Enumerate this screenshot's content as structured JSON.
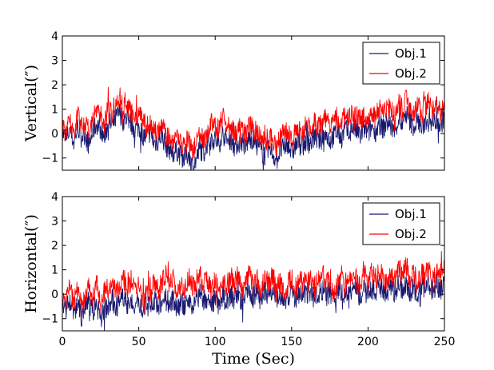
{
  "chart_data": [
    {
      "type": "line",
      "ylabel": "Vertical(″)",
      "xlabel": "",
      "xlim": [
        0,
        250
      ],
      "ylim": [
        -1.5,
        4
      ],
      "xticks": [],
      "xtick_labels": [],
      "yticks": [
        -1,
        0,
        1,
        2,
        3,
        4
      ],
      "ytick_labels": [
        "−1",
        "0",
        "1",
        "2",
        "3",
        "4"
      ],
      "legend_position": "top-right",
      "series": [
        {
          "name": "Obj.1",
          "color": "#191970",
          "x_start": 0,
          "x_step": 2.5,
          "values": [
            0.1,
            -0.3,
            0.2,
            -0.4,
            0.3,
            -0.1,
            0.0,
            -0.5,
            0.1,
            0.4,
            0.2,
            -0.2,
            0.5,
            0.3,
            0.6,
            0.9,
            0.5,
            0.7,
            0.4,
            0.2,
            0.3,
            0.0,
            -0.2,
            0.1,
            -0.4,
            -0.3,
            0.0,
            -0.5,
            -0.6,
            -0.8,
            -0.7,
            -0.9,
            -1.0,
            -0.8,
            -1.3,
            -1.1,
            -0.6,
            -0.8,
            -0.4,
            -0.2,
            -0.3,
            -0.4,
            0.0,
            -0.3,
            -0.2,
            -0.5,
            -0.4,
            -0.3,
            -0.6,
            -0.1,
            -0.3,
            -0.5,
            -0.7,
            -0.9,
            -0.6,
            -0.8,
            -1.1,
            -0.7,
            -0.6,
            -0.4,
            -0.8,
            -0.5,
            -0.3,
            -0.5,
            -0.2,
            -0.4,
            -0.1,
            -0.3,
            -0.2,
            0.0,
            -0.3,
            -0.1,
            0.1,
            -0.2,
            0.2,
            0.0,
            0.3,
            0.1,
            -0.1,
            0.2,
            0.0,
            0.3,
            0.1,
            0.4,
            0.2,
            0.5,
            0.3,
            0.1,
            0.6,
            0.4,
            0.8,
            0.5,
            0.3,
            0.6,
            0.2,
            0.5,
            0.7,
            0.4,
            0.6,
            0.3,
            0.8
          ]
        },
        {
          "name": "Obj.2",
          "color": "#ff0000",
          "x_start": 0,
          "x_step": 2.5,
          "values": [
            0.4,
            0.0,
            0.6,
            0.1,
            0.7,
            0.3,
            0.5,
            0.0,
            0.6,
            0.9,
            0.7,
            0.4,
            1.0,
            0.8,
            1.1,
            1.5,
            1.0,
            1.2,
            0.9,
            0.7,
            0.8,
            0.5,
            0.3,
            0.5,
            0.1,
            0.2,
            0.4,
            0.0,
            -0.1,
            -0.3,
            -0.2,
            -0.4,
            -0.5,
            -0.2,
            -0.7,
            -0.5,
            0.0,
            -0.3,
            0.1,
            0.4,
            0.3,
            0.2,
            0.7,
            0.4,
            0.4,
            0.0,
            0.1,
            0.3,
            -0.1,
            0.4,
            0.2,
            0.0,
            -0.2,
            -0.4,
            -0.1,
            -0.2,
            -0.5,
            -0.2,
            0.0,
            0.2,
            -0.3,
            0.0,
            0.3,
            0.1,
            0.4,
            0.2,
            0.5,
            0.3,
            0.4,
            0.6,
            0.3,
            0.5,
            0.7,
            0.4,
            0.8,
            0.6,
            0.9,
            0.7,
            0.5,
            0.8,
            0.6,
            0.9,
            0.7,
            1.0,
            0.8,
            1.1,
            0.9,
            0.7,
            1.2,
            1.0,
            1.4,
            1.1,
            0.9,
            1.2,
            0.8,
            1.1,
            1.3,
            1.0,
            1.2,
            0.9,
            1.3
          ]
        }
      ]
    },
    {
      "type": "line",
      "ylabel": "Horizontal(″)",
      "xlabel": "Time (Sec)",
      "xlim": [
        0,
        250
      ],
      "ylim": [
        -1.5,
        4
      ],
      "xticks": [
        0,
        50,
        100,
        150,
        200,
        250
      ],
      "xtick_labels": [
        "0",
        "50",
        "100",
        "150",
        "200",
        "250"
      ],
      "yticks": [
        -1,
        0,
        1,
        2,
        3,
        4
      ],
      "ytick_labels": [
        "−1",
        "0",
        "1",
        "2",
        "3",
        "4"
      ],
      "legend_position": "top-right",
      "series": [
        {
          "name": "Obj.1",
          "color": "#191970",
          "x_start": 0,
          "x_step": 2.5,
          "values": [
            -0.3,
            -0.6,
            -0.2,
            -0.8,
            -0.4,
            -0.9,
            -0.5,
            -0.3,
            -0.7,
            -0.4,
            -1.0,
            -0.6,
            -0.5,
            -0.2,
            -0.6,
            -0.3,
            -0.1,
            -0.4,
            -0.2,
            -0.5,
            -0.3,
            -0.7,
            -0.4,
            -0.6,
            -0.2,
            -0.5,
            -0.3,
            -0.1,
            -0.4,
            -0.2,
            -0.6,
            -0.3,
            -0.5,
            -0.1,
            -0.4,
            -0.2,
            0.0,
            -0.3,
            -0.1,
            -0.4,
            -0.2,
            -0.5,
            -0.1,
            -0.3,
            0.0,
            -0.2,
            0.1,
            -0.3,
            -0.1,
            0.2,
            -0.2,
            0.0,
            -0.3,
            0.1,
            -0.1,
            0.2,
            -0.2,
            0.0,
            -0.4,
            -0.1,
            0.1,
            -0.3,
            0.0,
            0.2,
            -0.1,
            0.1,
            -0.2,
            0.0,
            0.2,
            -0.1,
            0.1,
            -0.3,
            0.0,
            0.2,
            -0.1,
            0.0,
            0.3,
            0.1,
            -0.1,
            0.2,
            0.0,
            0.3,
            0.1,
            0.4,
            0.2,
            0.0,
            0.3,
            0.1,
            0.4,
            0.2,
            0.5,
            0.1,
            0.3,
            0.0,
            0.4,
            0.2,
            0.5,
            0.1,
            0.4,
            0.2,
            0.5
          ]
        },
        {
          "name": "Obj.2",
          "color": "#ff0000",
          "x_start": 0,
          "x_step": 2.5,
          "values": [
            0.1,
            -0.2,
            0.3,
            -0.4,
            0.2,
            -0.5,
            0.0,
            0.3,
            -0.2,
            0.5,
            -0.6,
            0.1,
            0.2,
            0.6,
            0.0,
            0.4,
            0.7,
            0.2,
            0.5,
            0.1,
            0.4,
            -0.2,
            0.3,
            0.0,
            0.5,
            0.2,
            0.4,
            0.8,
            0.3,
            0.6,
            0.0,
            0.4,
            0.2,
            0.7,
            0.3,
            0.5,
            0.8,
            0.4,
            0.6,
            0.2,
            0.5,
            0.1,
            0.6,
            0.3,
            0.7,
            0.4,
            0.8,
            0.2,
            0.5,
            1.0,
            0.3,
            0.6,
            0.1,
            0.7,
            0.4,
            0.8,
            0.2,
            0.5,
            0.0,
            0.4,
            0.7,
            0.2,
            0.5,
            0.8,
            0.4,
            0.7,
            0.3,
            0.6,
            0.9,
            0.4,
            0.7,
            0.1,
            0.5,
            0.8,
            0.4,
            0.6,
            0.9,
            0.6,
            0.3,
            0.8,
            0.5,
            0.9,
            0.6,
            1.0,
            0.7,
            0.4,
            0.9,
            0.6,
            1.1,
            0.8,
            1.2,
            0.6,
            0.9,
            0.5,
            1.0,
            0.7,
            1.2,
            0.6,
            1.0,
            0.8,
            1.1
          ]
        }
      ]
    }
  ]
}
